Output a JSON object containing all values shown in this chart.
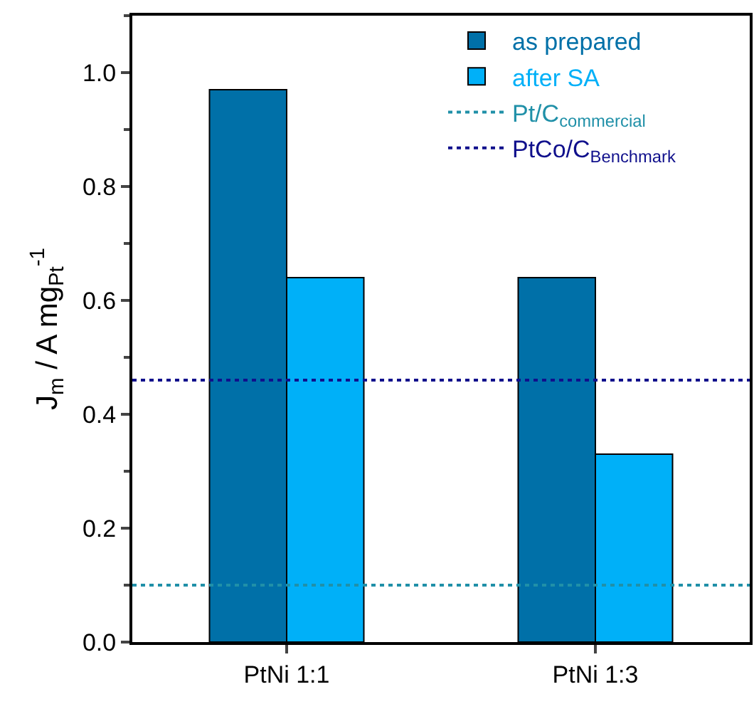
{
  "chart_data": {
    "type": "bar",
    "ylabel": "J$_{m}$ / A mg$_{Pt}$$^{-1}$",
    "categories": [
      "PtNi 1:1",
      "PtNi 1:3"
    ],
    "series": [
      {
        "name": "as prepared",
        "color": "#0070a8",
        "values": [
          0.97,
          0.64
        ]
      },
      {
        "name": "after SA",
        "color": "#00b0f8",
        "values": [
          0.64,
          0.33
        ]
      }
    ],
    "ref_lines": [
      {
        "axis": "y",
        "value": 0.1,
        "label": "Pt/C$_{commercial}$",
        "color": "#2090a8",
        "line_style": "dotted"
      },
      {
        "axis": "y",
        "value": 0.46,
        "label": "PtCo/C$_{Benchmark}$",
        "color": "#10108c",
        "line_style": "dotted"
      }
    ],
    "ylim": [
      0,
      1.1
    ],
    "yticks": [
      {
        "value": 0,
        "label": "0.0"
      },
      0.2,
      0.4,
      0.6,
      0.8,
      {
        "value": 1,
        "label": "1.0"
      }
    ],
    "grid": false,
    "legend": "top right"
  }
}
